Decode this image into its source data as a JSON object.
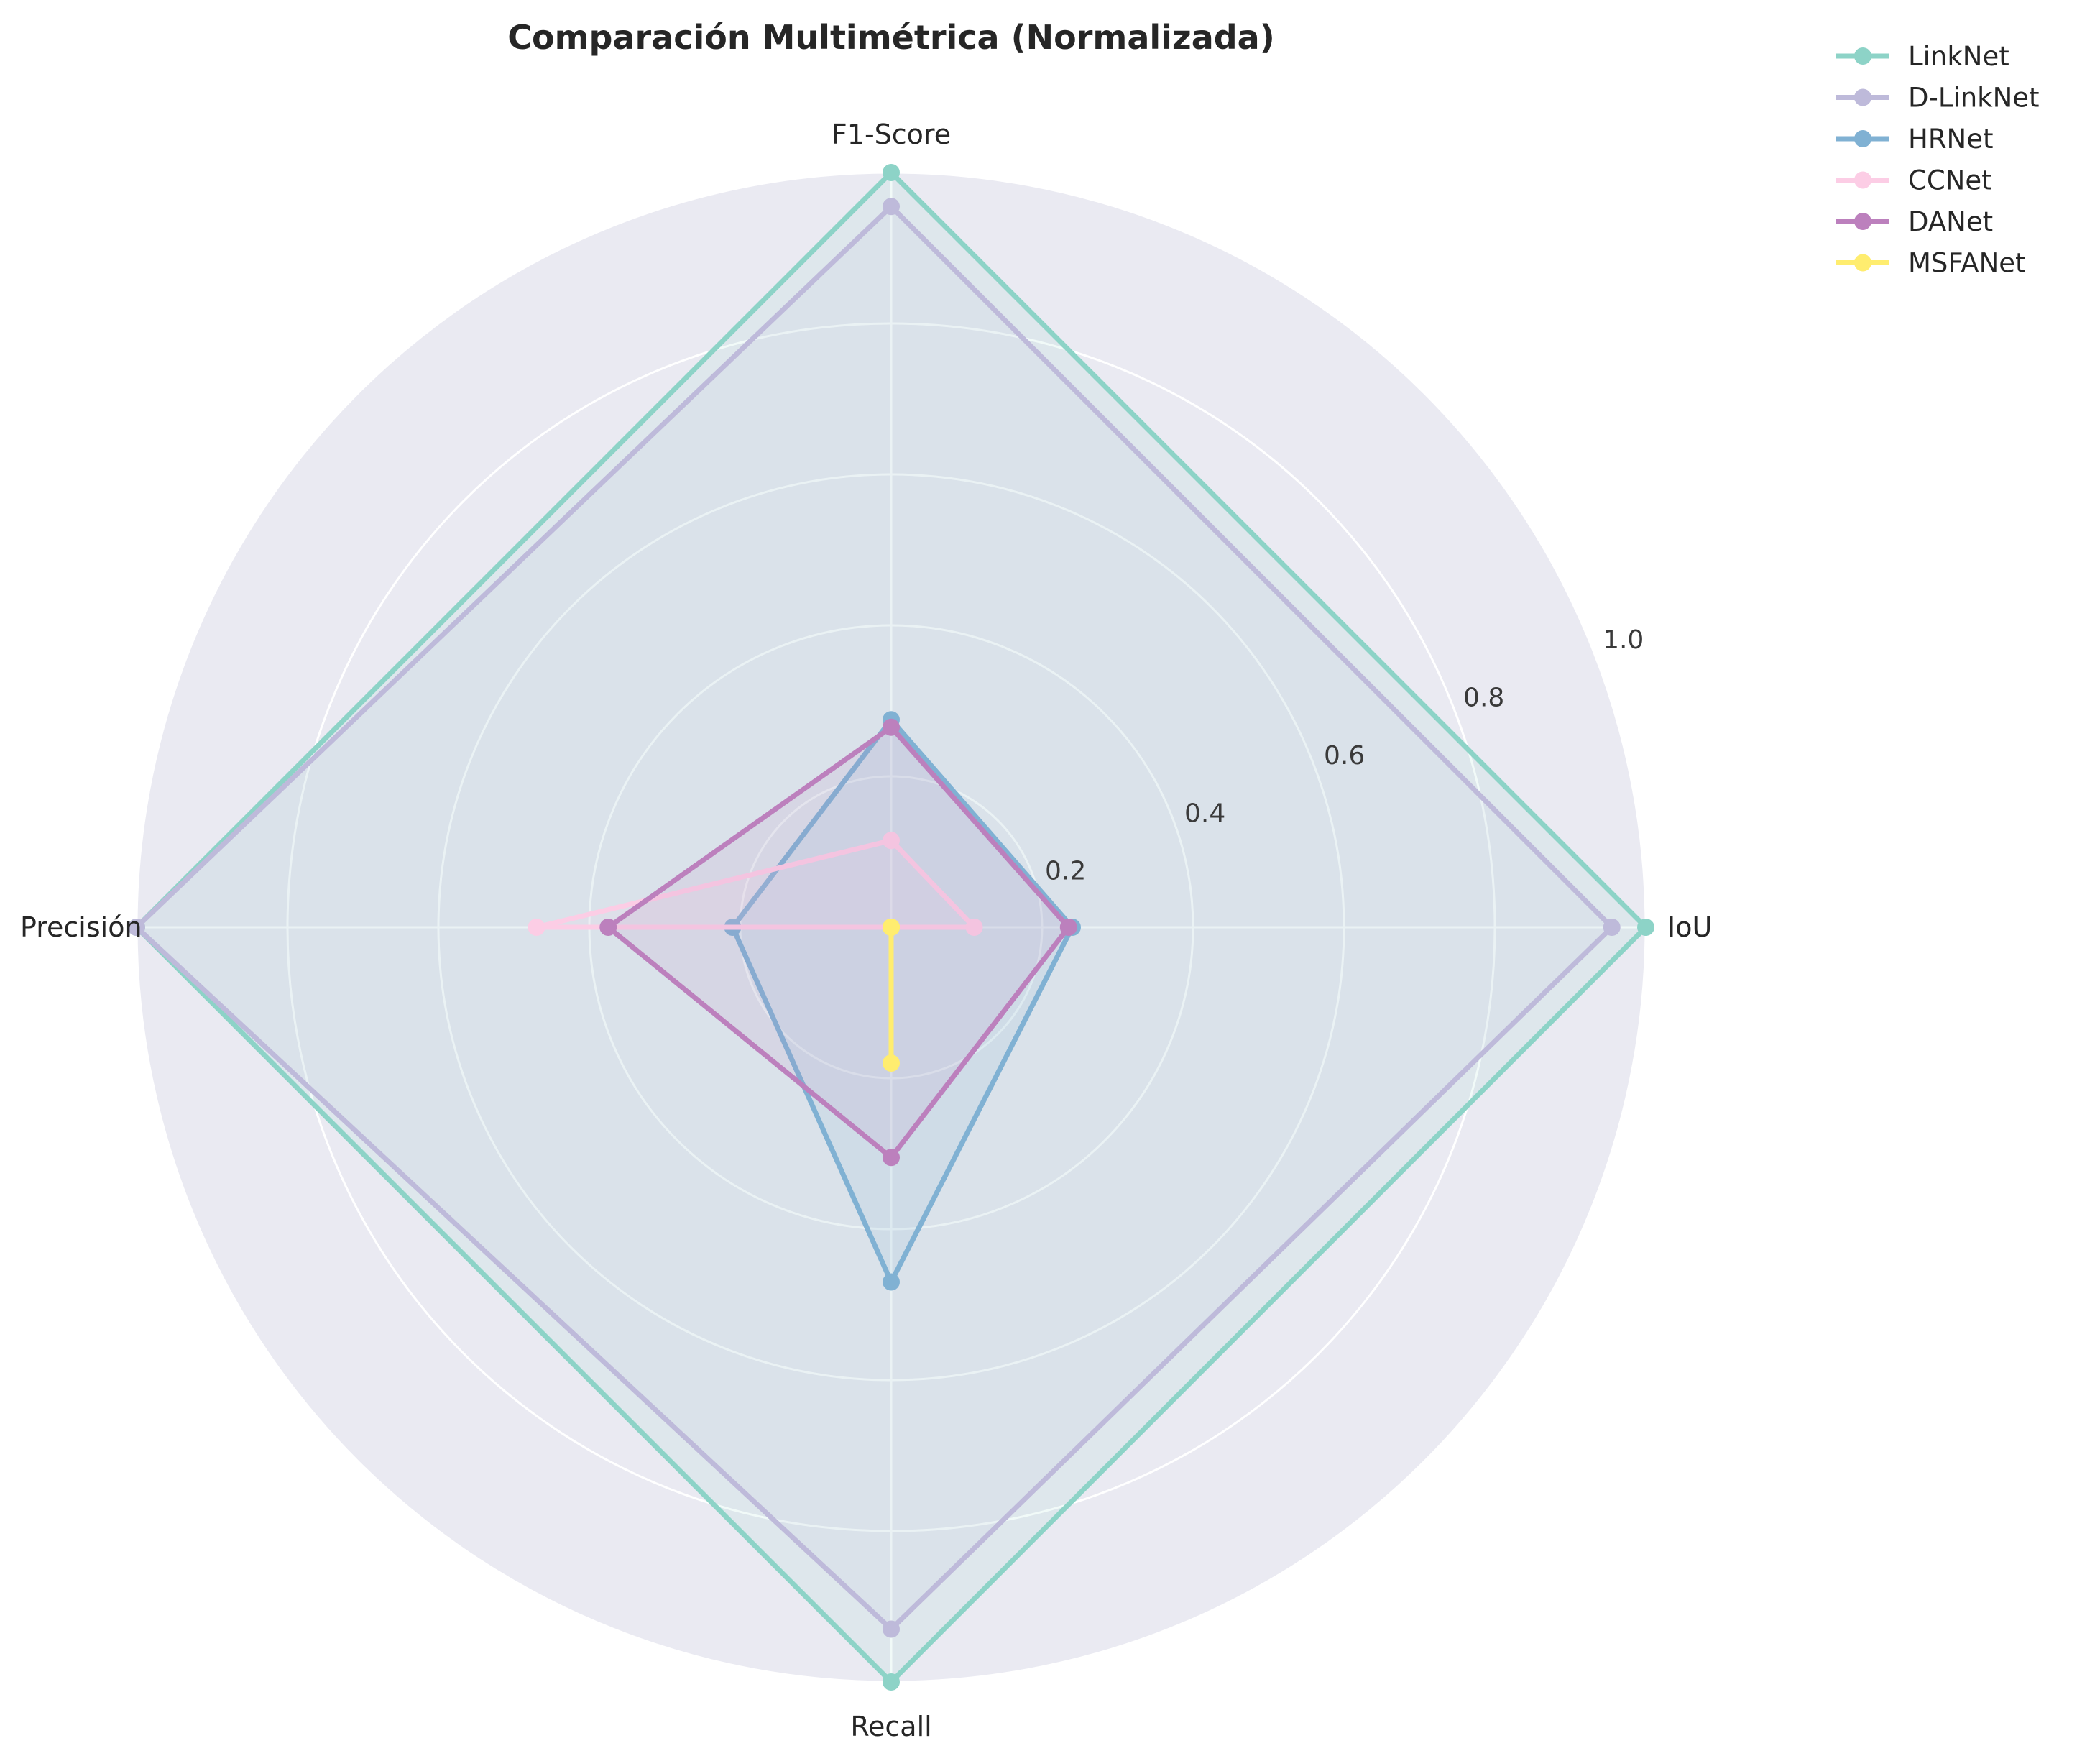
{
  "chart_data": {
    "type": "radar",
    "title": "Comparación Multimétrica (Normalizada)",
    "axes": [
      "IoU",
      "F1-Score",
      "Precisión",
      "Recall"
    ],
    "rlim": [
      0,
      1
    ],
    "rticks": [
      0.2,
      0.4,
      0.6,
      0.8,
      1.0
    ],
    "rtick_labels": [
      "0.2",
      "0.4",
      "0.6",
      "0.8",
      "1.0"
    ],
    "grid": true,
    "legend_position": "upper-right outside",
    "series": [
      {
        "name": "LinkNet",
        "color": "#8dd3c7",
        "values": [
          1.0,
          1.0,
          1.0,
          1.0
        ]
      },
      {
        "name": "D-LinkNet",
        "color": "#bebada",
        "values": [
          0.955,
          0.955,
          1.0,
          0.93
        ]
      },
      {
        "name": "HRNet",
        "color": "#80b1d3",
        "values": [
          0.24,
          0.275,
          0.21,
          0.47
        ]
      },
      {
        "name": "CCNet",
        "color": "#fccde5",
        "values": [
          0.11,
          0.115,
          0.47,
          0.0
        ]
      },
      {
        "name": "DANet",
        "color": "#bc80bd",
        "values": [
          0.235,
          0.265,
          0.375,
          0.305
        ]
      },
      {
        "name": "MSFANet",
        "color": "#ffed6f",
        "values": [
          0.0,
          0.0,
          0.0,
          0.18
        ]
      }
    ]
  }
}
